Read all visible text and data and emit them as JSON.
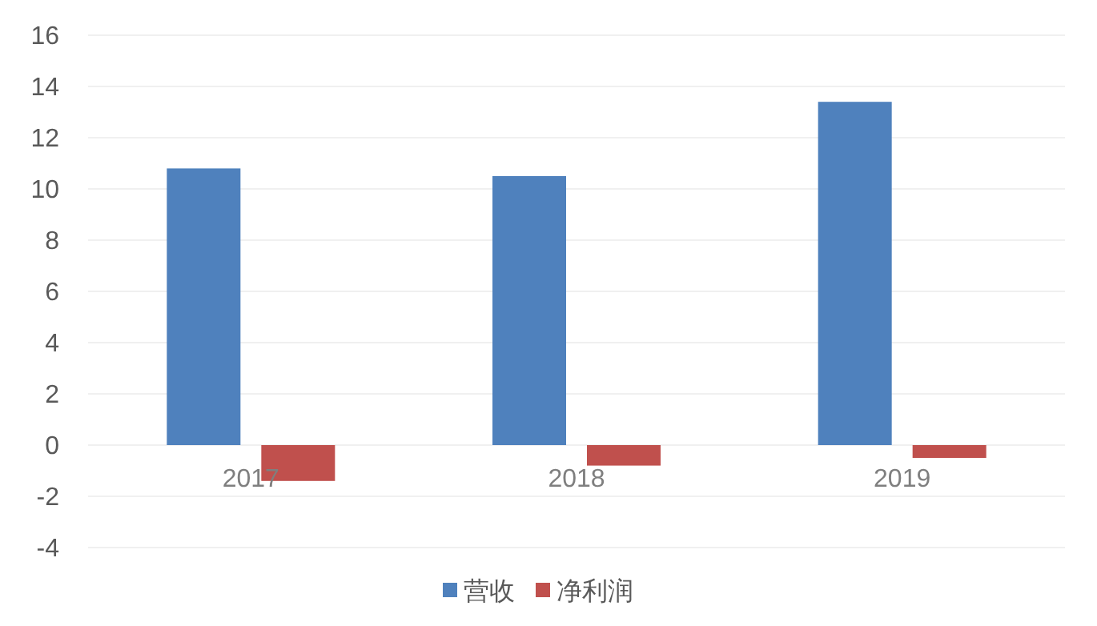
{
  "chart_data": {
    "type": "bar",
    "categories": [
      "2017",
      "2018",
      "2019"
    ],
    "series": [
      {
        "name": "营收",
        "color": "#4f81bd",
        "values": [
          10.8,
          10.5,
          13.4
        ]
      },
      {
        "name": "净利润",
        "color": "#c0504d",
        "values": [
          -1.4,
          -0.8,
          -0.5
        ]
      }
    ],
    "ylim": [
      -4,
      16
    ],
    "yticks": [
      -4,
      -2,
      0,
      2,
      4,
      6,
      8,
      10,
      12,
      14,
      16
    ],
    "grid": "y",
    "legend": "bottom"
  }
}
